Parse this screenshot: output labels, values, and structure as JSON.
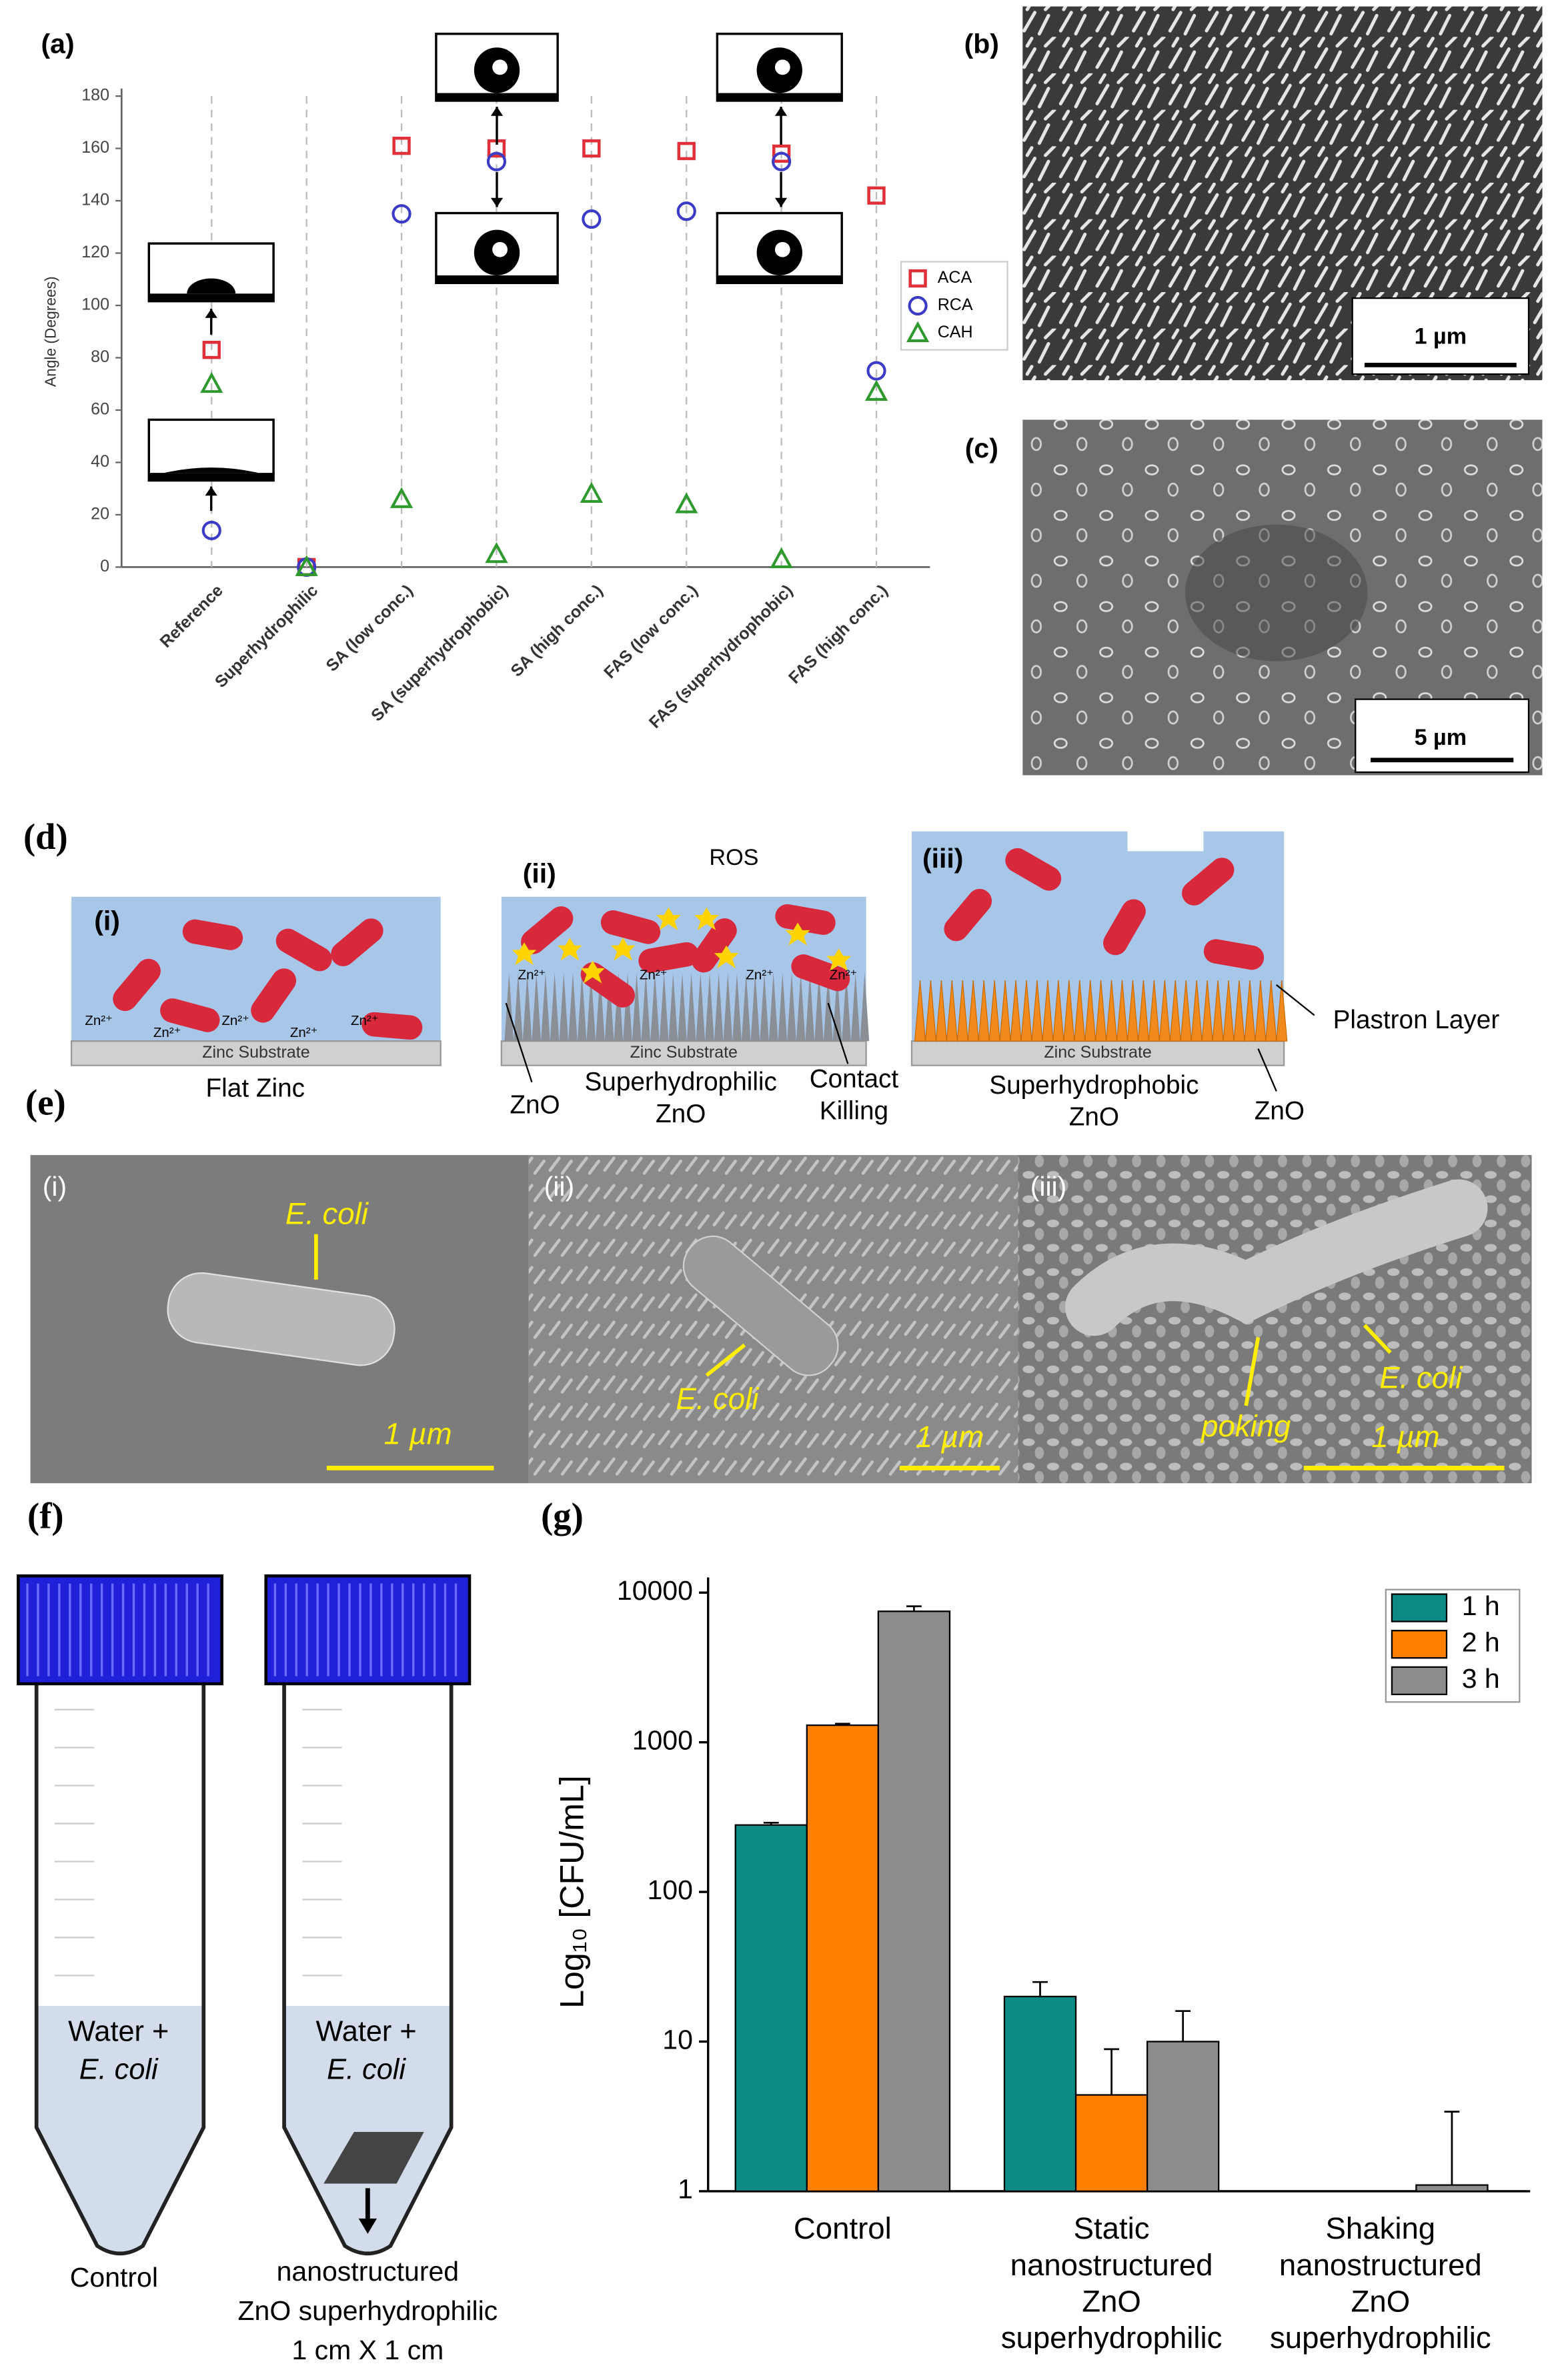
{
  "chart_data": [
    {
      "type": "point",
      "panel_label": "(a)",
      "y_label": "Angle (Degrees)",
      "categories": [
        "Reference",
        "Superhydrophilic",
        "SA (low conc.)",
        "SA (superhydrophobic)",
        "SA (high conc.)",
        "FAS (low conc.)",
        "FAS (superhydrophobic)",
        "FAS (high conc.)"
      ],
      "series": [
        {
          "name": "ACA",
          "color": "#e0303a",
          "marker": "square",
          "values": [
            83,
            0,
            161,
            160,
            160,
            159,
            158,
            142
          ]
        },
        {
          "name": "RCA",
          "color": "#3b3bc8",
          "marker": "circle",
          "values": [
            14,
            0,
            135,
            155,
            133,
            136,
            155,
            75
          ]
        },
        {
          "name": "CAH",
          "color": "#2e9a2e",
          "marker": "triangle",
          "values": [
            70,
            0,
            26,
            5,
            28,
            24,
            3,
            67
          ]
        }
      ],
      "ylim": [
        0,
        180
      ],
      "yticks": [
        0,
        20,
        40,
        60,
        80,
        100,
        120,
        140,
        160,
        180
      ],
      "grid": false,
      "legend": "right"
    },
    {
      "type": "bar",
      "panel_label": "(g)",
      "y_label": "Log₁₀ [CFU/mL]",
      "log_scale": true,
      "categories": [
        [
          "Control"
        ],
        [
          "Static",
          "nanostructured",
          "ZnO",
          "superhydrophilic"
        ],
        [
          "Shaking",
          "nanostructured",
          "ZnO",
          "superhydrophilic"
        ]
      ],
      "series": [
        {
          "name": "1 h",
          "color": "#0e8a86",
          "values": [
            280,
            20,
            1
          ],
          "errors": [
            10,
            5,
            0
          ]
        },
        {
          "name": "2 h",
          "color": "#ff8000",
          "values": [
            1300,
            4.4,
            1
          ],
          "errors": [
            30,
            4.5,
            0
          ]
        },
        {
          "name": "3 h",
          "color": "#8c8c8c",
          "values": [
            7500,
            10,
            1.1
          ],
          "errors": [
            600,
            6,
            2.3
          ]
        }
      ],
      "ylim": [
        1,
        10000
      ],
      "yticks": [
        1,
        10,
        100,
        1000,
        10000
      ],
      "grid": false,
      "legend": "upper right"
    }
  ],
  "panel_b": {
    "label": "(b)",
    "scale_bar": "1 µm"
  },
  "panel_c": {
    "label": "(c)",
    "scale_bar": "5 µm"
  },
  "panel_d": {
    "label": "(d)",
    "i": {
      "label": "(i)",
      "ion": "Zn²⁺",
      "substrate": "Zinc Substrate",
      "caption": "Flat Zinc"
    },
    "ii": {
      "label": "(ii)",
      "ros": "ROS",
      "ion": "Zn²⁺",
      "substrate": "Zinc Substrate",
      "zno": "ZnO",
      "caption": [
        "Superhydrophilic",
        "ZnO"
      ],
      "contact": [
        "Contact",
        "Killing"
      ]
    },
    "iii": {
      "label": "(iii)",
      "substrate": "Zinc Substrate",
      "plastron": "Plastron Layer",
      "caption": [
        "Superhydrophobic",
        "ZnO"
      ],
      "zno": "ZnO"
    }
  },
  "panel_e": {
    "label": "(e)",
    "i": {
      "label": "(i)",
      "bacterium": "E. coli",
      "scale_bar": "1 µm"
    },
    "ii": {
      "label": "(ii)",
      "bacterium": "E. coli",
      "scale_bar": "1 µm"
    },
    "iii": {
      "label": "(iii)",
      "bacterium": "E. coli",
      "poking": "poking",
      "scale_bar": "1 µm"
    }
  },
  "panel_f": {
    "label": "(f)",
    "tube_contents": [
      "Water +",
      "E. coli"
    ],
    "control": "Control",
    "sample": [
      "nanostructured",
      "ZnO superhydrophilic",
      "1 cm X 1 cm"
    ]
  }
}
